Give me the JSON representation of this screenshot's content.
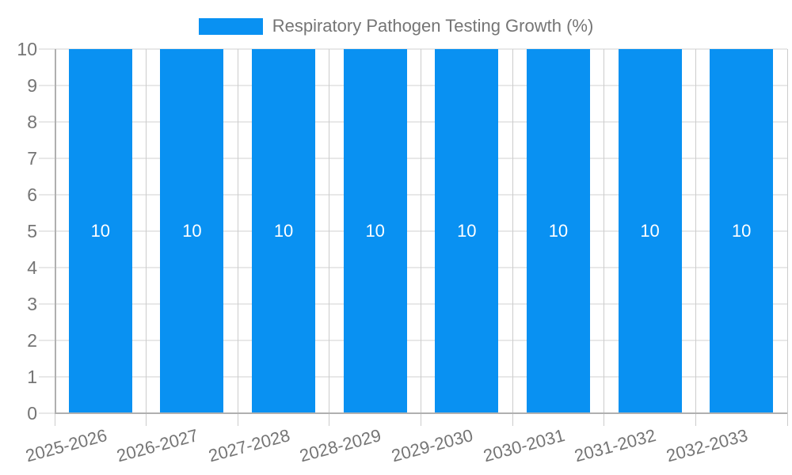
{
  "legend": {
    "label": "Respiratory Pathogen Testing Growth (%)",
    "position": "top"
  },
  "chart_data": {
    "type": "bar",
    "title": "Respiratory Pathogen Testing Growth (%)",
    "categories": [
      "2025-2026",
      "2026-2027",
      "2027-2028",
      "2028-2029",
      "2029-2030",
      "2030-2031",
      "2031-2032",
      "2032-2033"
    ],
    "values": [
      10,
      10,
      10,
      10,
      10,
      10,
      10,
      10
    ],
    "data_labels": [
      "10",
      "10",
      "10",
      "10",
      "10",
      "10",
      "10",
      "10"
    ],
    "xlabel": "",
    "ylabel": "",
    "ylim": [
      0,
      10
    ],
    "y_ticks": [
      0,
      1,
      2,
      3,
      4,
      5,
      6,
      7,
      8,
      9,
      10
    ],
    "grid": "on",
    "legend_position": "top",
    "x_labels_rotated": true
  },
  "colors": {
    "bar": "#0991f2",
    "grid_horizontal": "#e8e8e8",
    "grid_vertical": "#cccccc",
    "axis": "#b0b0b0",
    "text": "#757575",
    "value_label": "#ffffff",
    "background": "#ffffff"
  }
}
